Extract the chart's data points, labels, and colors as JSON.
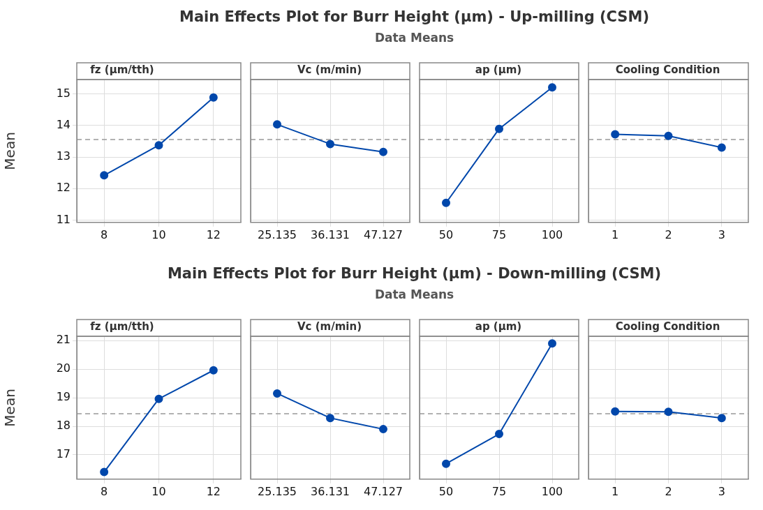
{
  "chart_data": [
    {
      "type": "line",
      "title": "fz (µm/tth)",
      "annotations": [
        "Main Effects Plot for Burr Height (µm) - Up-milling (CSM)",
        "Data Means"
      ],
      "ylabel": "Mean",
      "categories": [
        "8",
        "10",
        "12"
      ],
      "series": [
        {
          "color": "#0047ab",
          "values": [
            12.42,
            13.37,
            14.88
          ]
        }
      ],
      "ylim": [
        10.93,
        15.45
      ],
      "yticks": [
        11,
        12,
        13,
        14,
        15
      ],
      "ref_lines": [
        {
          "axis": "y",
          "value": 13.55,
          "color": "#999999",
          "line_style": "dashed"
        }
      ],
      "grid": true,
      "marker": "circle",
      "legend": false
    },
    {
      "type": "line",
      "title": "Vc (m/min)",
      "categories": [
        "25.135",
        "36.131",
        "47.127"
      ],
      "series": [
        {
          "color": "#0047ab",
          "values": [
            14.03,
            13.41,
            13.16
          ]
        }
      ],
      "ylim": [
        10.93,
        15.45
      ],
      "yticks": [
        11,
        12,
        13,
        14,
        15
      ],
      "ref_lines": [
        {
          "axis": "y",
          "value": 13.55,
          "color": "#999999",
          "line_style": "dashed"
        }
      ],
      "grid": true,
      "marker": "circle",
      "legend": false,
      "tick_labels": "x"
    },
    {
      "type": "line",
      "title": "ap (µm)",
      "categories": [
        "50",
        "75",
        "100"
      ],
      "series": [
        {
          "color": "#0047ab",
          "values": [
            11.55,
            13.89,
            15.2
          ]
        }
      ],
      "ylim": [
        10.93,
        15.45
      ],
      "yticks": [
        11,
        12,
        13,
        14,
        15
      ],
      "ref_lines": [
        {
          "axis": "y",
          "value": 13.55,
          "color": "#999999",
          "line_style": "dashed"
        }
      ],
      "grid": true,
      "marker": "circle",
      "legend": false,
      "tick_labels": "x"
    },
    {
      "type": "line",
      "title": "Cooling Condition",
      "categories": [
        "1",
        "2",
        "3"
      ],
      "series": [
        {
          "color": "#0047ab",
          "values": [
            13.72,
            13.67,
            13.3
          ]
        }
      ],
      "ylim": [
        10.93,
        15.45
      ],
      "yticks": [
        11,
        12,
        13,
        14,
        15
      ],
      "ref_lines": [
        {
          "axis": "y",
          "value": 13.55,
          "color": "#999999",
          "line_style": "dashed"
        }
      ],
      "grid": true,
      "marker": "circle",
      "legend": false,
      "tick_labels": "x"
    },
    {
      "type": "line",
      "title": "fz (µm/tth)",
      "annotations": [
        "Main Effects Plot for Burr Height (µm) - Down-milling (CSM)",
        "Data Means"
      ],
      "ylabel": "Mean",
      "categories": [
        "8",
        "10",
        "12"
      ],
      "series": [
        {
          "color": "#0047ab",
          "values": [
            16.4,
            18.96,
            19.96
          ]
        }
      ],
      "ylim": [
        16.15,
        21.15
      ],
      "yticks": [
        17,
        18,
        19,
        20,
        21
      ],
      "ref_lines": [
        {
          "axis": "y",
          "value": 18.44,
          "color": "#999999",
          "line_style": "dashed"
        }
      ],
      "grid": true,
      "marker": "circle",
      "legend": false
    },
    {
      "type": "line",
      "title": "Vc (m/min)",
      "categories": [
        "25.135",
        "36.131",
        "47.127"
      ],
      "series": [
        {
          "color": "#0047ab",
          "values": [
            19.15,
            18.29,
            17.9
          ]
        }
      ],
      "ylim": [
        16.15,
        21.15
      ],
      "yticks": [
        17,
        18,
        19,
        20,
        21
      ],
      "ref_lines": [
        {
          "axis": "y",
          "value": 18.44,
          "color": "#999999",
          "line_style": "dashed"
        }
      ],
      "grid": true,
      "marker": "circle",
      "legend": false,
      "tick_labels": "x"
    },
    {
      "type": "line",
      "title": "ap (µm)",
      "categories": [
        "50",
        "75",
        "100"
      ],
      "series": [
        {
          "color": "#0047ab",
          "values": [
            16.69,
            17.73,
            20.9
          ]
        }
      ],
      "ylim": [
        16.15,
        21.15
      ],
      "yticks": [
        17,
        18,
        19,
        20,
        21
      ],
      "ref_lines": [
        {
          "axis": "y",
          "value": 18.44,
          "color": "#999999",
          "line_style": "dashed"
        }
      ],
      "grid": true,
      "marker": "circle",
      "legend": false,
      "tick_labels": "x"
    },
    {
      "type": "line",
      "title": "Cooling Condition",
      "categories": [
        "1",
        "2",
        "3"
      ],
      "series": [
        {
          "color": "#0047ab",
          "values": [
            18.52,
            18.51,
            18.29
          ]
        }
      ],
      "ylim": [
        16.15,
        21.15
      ],
      "yticks": [
        17,
        18,
        19,
        20,
        21
      ],
      "ref_lines": [
        {
          "axis": "y",
          "value": 18.44,
          "color": "#999999",
          "line_style": "dashed"
        }
      ],
      "grid": true,
      "marker": "circle",
      "legend": false,
      "tick_labels": "x"
    }
  ]
}
